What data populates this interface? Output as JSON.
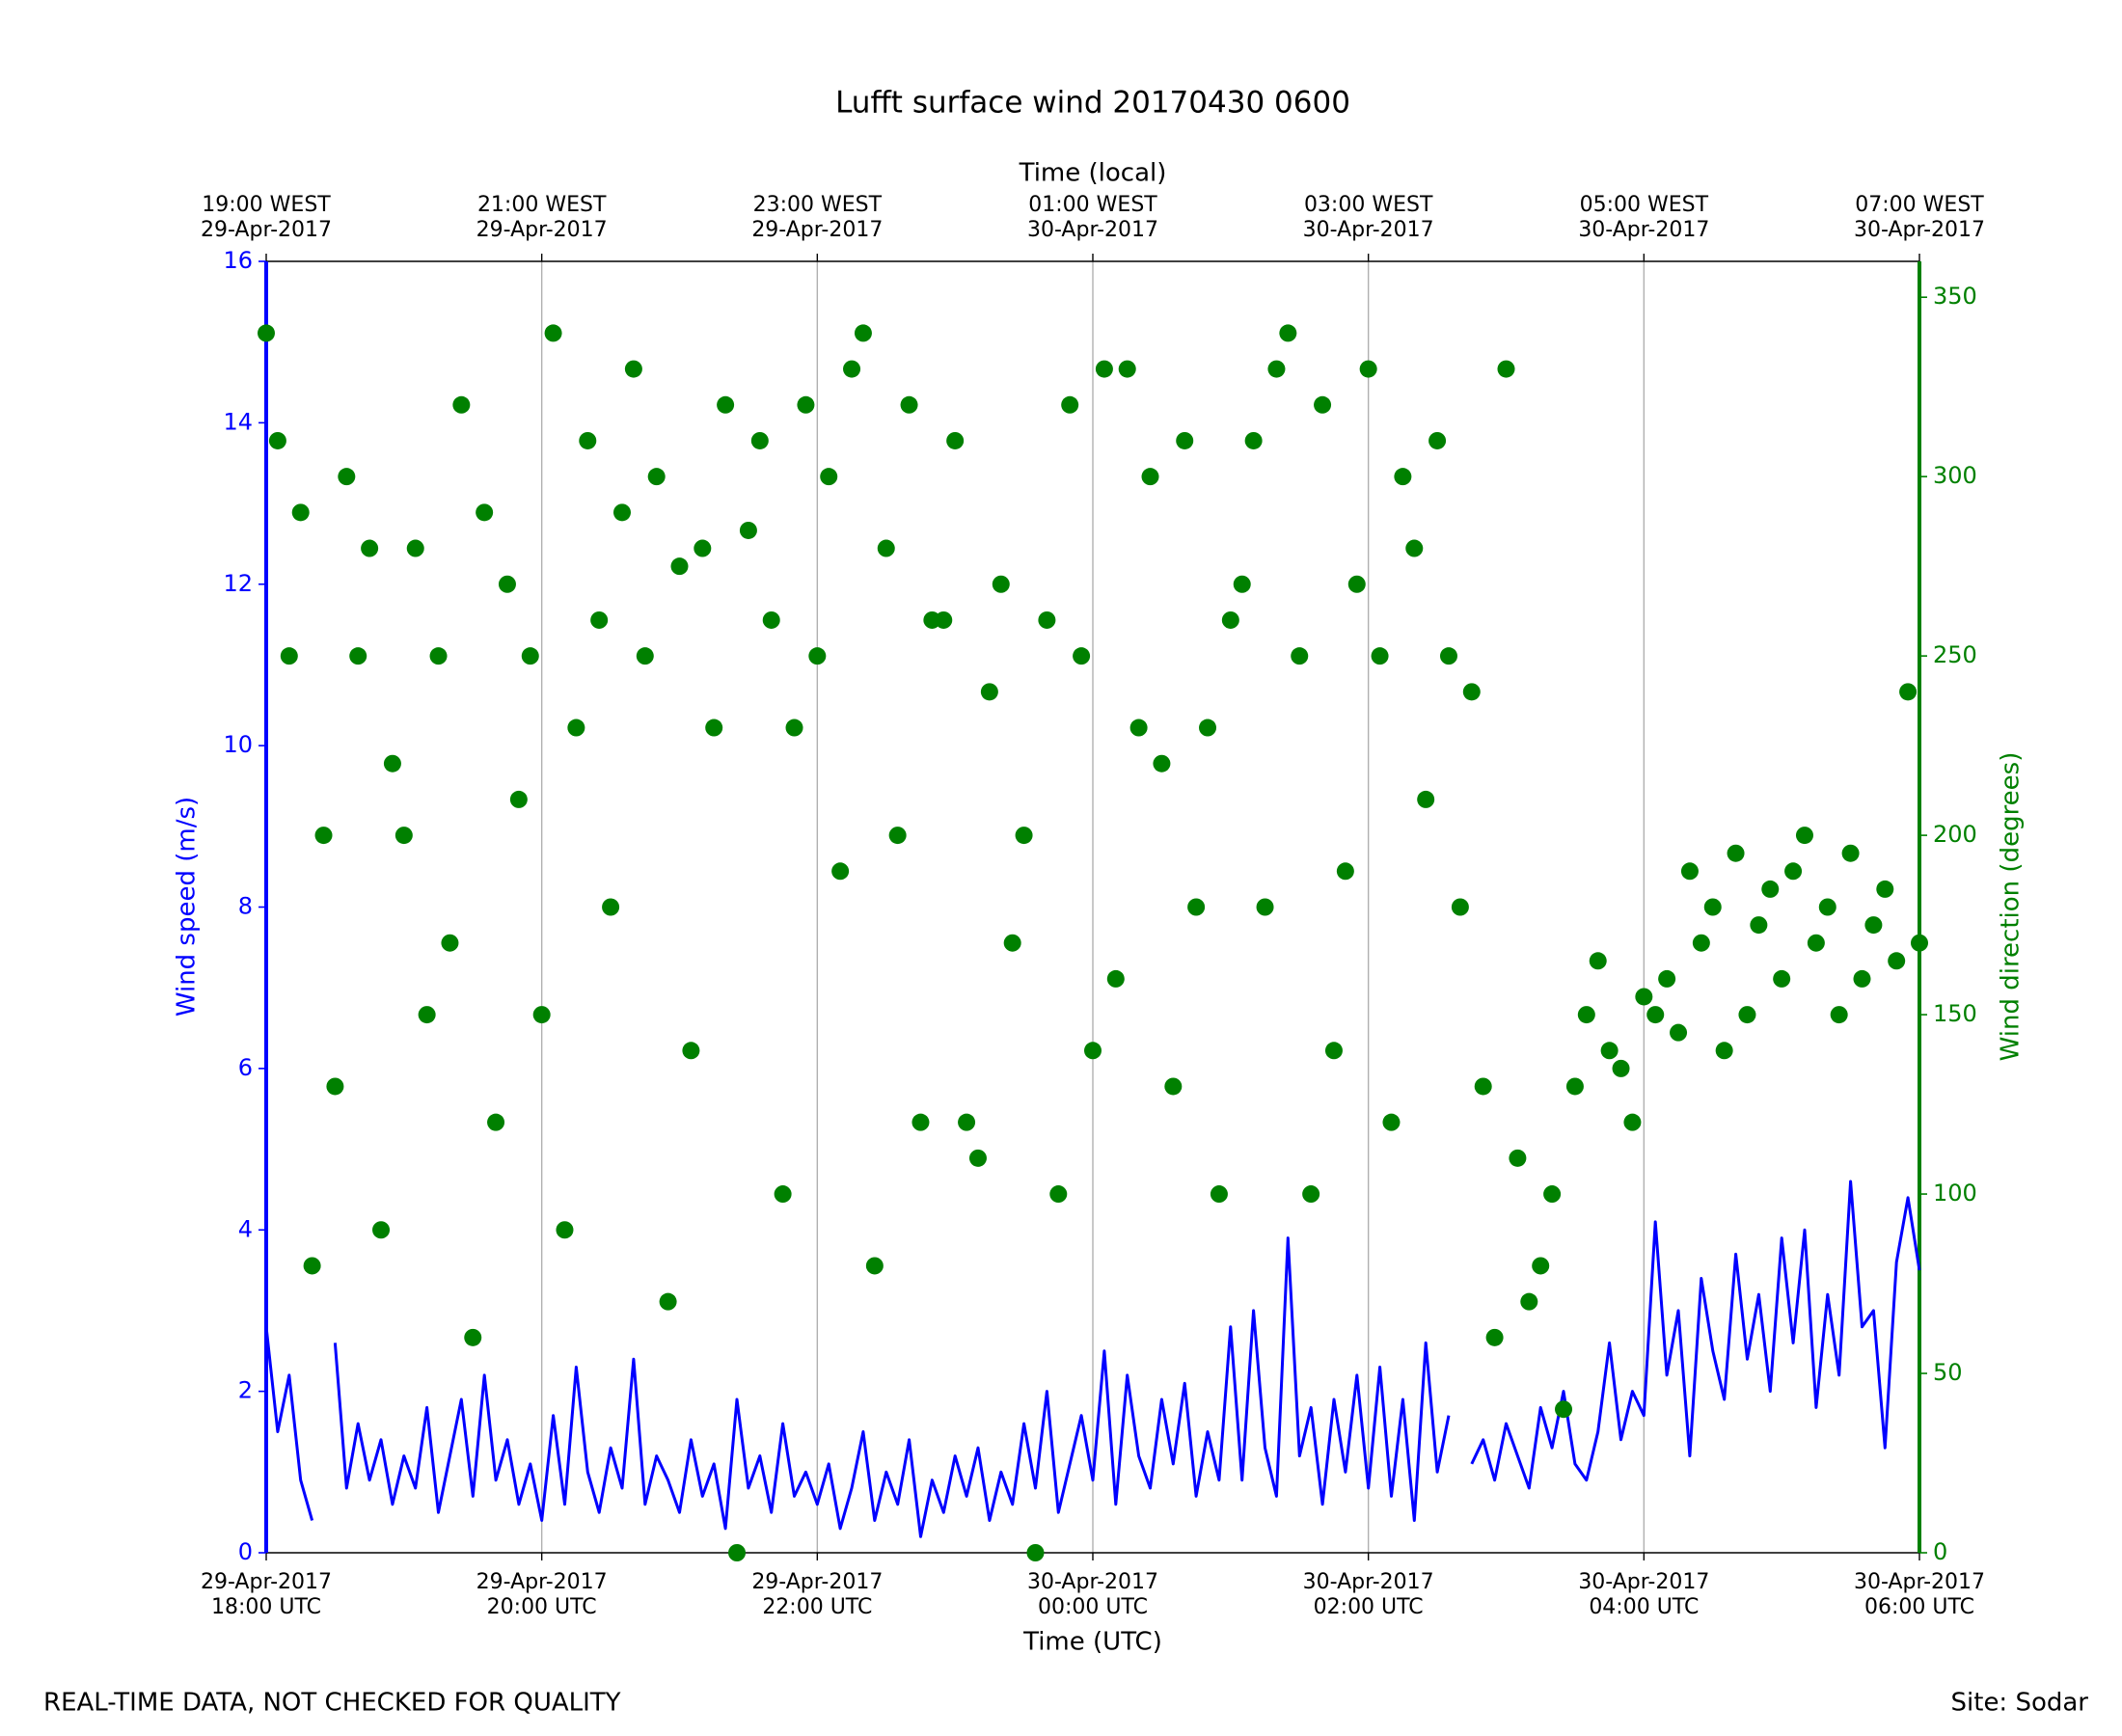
{
  "chart_data": {
    "type": "line-scatter",
    "title": "Lufft surface wind 20170430 0600",
    "x_label": "Time (UTC)",
    "x2_label": "Time (local)",
    "y_label": "Wind speed (m/s)",
    "y2_label": "Wind direction (degrees)",
    "footer_left": "REAL-TIME DATA, NOT CHECKED FOR QUALITY",
    "footer_right": "Site: Sodar",
    "xlim": [
      "2017-04-29T18:00",
      "2017-04-30T06:00"
    ],
    "xticks": [
      {
        "value": "2017-04-29T18:00",
        "label": [
          "29-Apr-2017",
          "18:00 UTC"
        ]
      },
      {
        "value": "2017-04-29T20:00",
        "label": [
          "29-Apr-2017",
          "20:00 UTC"
        ]
      },
      {
        "value": "2017-04-29T22:00",
        "label": [
          "29-Apr-2017",
          "22:00 UTC"
        ]
      },
      {
        "value": "2017-04-30T00:00",
        "label": [
          "30-Apr-2017",
          "00:00 UTC"
        ]
      },
      {
        "value": "2017-04-30T02:00",
        "label": [
          "30-Apr-2017",
          "02:00 UTC"
        ]
      },
      {
        "value": "2017-04-30T04:00",
        "label": [
          "30-Apr-2017",
          "04:00 UTC"
        ]
      },
      {
        "value": "2017-04-30T06:00",
        "label": [
          "30-Apr-2017",
          "06:00 UTC"
        ]
      }
    ],
    "x2ticks": [
      {
        "value": "2017-04-29T18:00",
        "label": [
          "19:00 WEST",
          "29-Apr-2017"
        ]
      },
      {
        "value": "2017-04-29T20:00",
        "label": [
          "21:00 WEST",
          "29-Apr-2017"
        ]
      },
      {
        "value": "2017-04-29T22:00",
        "label": [
          "23:00 WEST",
          "29-Apr-2017"
        ]
      },
      {
        "value": "2017-04-30T00:00",
        "label": [
          "01:00 WEST",
          "30-Apr-2017"
        ]
      },
      {
        "value": "2017-04-30T02:00",
        "label": [
          "03:00 WEST",
          "30-Apr-2017"
        ]
      },
      {
        "value": "2017-04-30T04:00",
        "label": [
          "05:00 WEST",
          "30-Apr-2017"
        ]
      },
      {
        "value": "2017-04-30T06:00",
        "label": [
          "07:00 WEST",
          "30-Apr-2017"
        ]
      }
    ],
    "ylim": [
      0,
      16
    ],
    "yticks": [
      0,
      2,
      4,
      6,
      8,
      10,
      12,
      14,
      16
    ],
    "y2lim": [
      0,
      360
    ],
    "y2ticks": [
      0,
      50,
      100,
      150,
      200,
      250,
      300,
      350
    ],
    "grid": true,
    "x": [
      "2017-04-29T18:00",
      "2017-04-29T18:05",
      "2017-04-29T18:10",
      "2017-04-29T18:15",
      "2017-04-29T18:20",
      "2017-04-29T18:25",
      "2017-04-29T18:30",
      "2017-04-29T18:35",
      "2017-04-29T18:40",
      "2017-04-29T18:45",
      "2017-04-29T18:50",
      "2017-04-29T18:55",
      "2017-04-29T19:00",
      "2017-04-29T19:05",
      "2017-04-29T19:10",
      "2017-04-29T19:15",
      "2017-04-29T19:20",
      "2017-04-29T19:25",
      "2017-04-29T19:30",
      "2017-04-29T19:35",
      "2017-04-29T19:40",
      "2017-04-29T19:45",
      "2017-04-29T19:50",
      "2017-04-29T19:55",
      "2017-04-29T20:00",
      "2017-04-29T20:05",
      "2017-04-29T20:10",
      "2017-04-29T20:15",
      "2017-04-29T20:20",
      "2017-04-29T20:25",
      "2017-04-29T20:30",
      "2017-04-29T20:35",
      "2017-04-29T20:40",
      "2017-04-29T20:45",
      "2017-04-29T20:50",
      "2017-04-29T20:55",
      "2017-04-29T21:00",
      "2017-04-29T21:05",
      "2017-04-29T21:10",
      "2017-04-29T21:15",
      "2017-04-29T21:20",
      "2017-04-29T21:25",
      "2017-04-29T21:30",
      "2017-04-29T21:35",
      "2017-04-29T21:40",
      "2017-04-29T21:45",
      "2017-04-29T21:50",
      "2017-04-29T21:55",
      "2017-04-29T22:00",
      "2017-04-29T22:05",
      "2017-04-29T22:10",
      "2017-04-29T22:15",
      "2017-04-29T22:20",
      "2017-04-29T22:25",
      "2017-04-29T22:30",
      "2017-04-29T22:35",
      "2017-04-29T22:40",
      "2017-04-29T22:45",
      "2017-04-29T22:50",
      "2017-04-29T22:55",
      "2017-04-29T23:00",
      "2017-04-29T23:05",
      "2017-04-29T23:10",
      "2017-04-29T23:15",
      "2017-04-29T23:20",
      "2017-04-29T23:25",
      "2017-04-29T23:30",
      "2017-04-29T23:35",
      "2017-04-29T23:40",
      "2017-04-29T23:45",
      "2017-04-29T23:50",
      "2017-04-29T23:55",
      "2017-04-30T00:00",
      "2017-04-30T00:05",
      "2017-04-30T00:10",
      "2017-04-30T00:15",
      "2017-04-30T00:20",
      "2017-04-30T00:25",
      "2017-04-30T00:30",
      "2017-04-30T00:35",
      "2017-04-30T00:40",
      "2017-04-30T00:45",
      "2017-04-30T00:50",
      "2017-04-30T00:55",
      "2017-04-30T01:00",
      "2017-04-30T01:05",
      "2017-04-30T01:10",
      "2017-04-30T01:15",
      "2017-04-30T01:20",
      "2017-04-30T01:25",
      "2017-04-30T01:30",
      "2017-04-30T01:35",
      "2017-04-30T01:40",
      "2017-04-30T01:45",
      "2017-04-30T01:50",
      "2017-04-30T01:55",
      "2017-04-30T02:00",
      "2017-04-30T02:05",
      "2017-04-30T02:10",
      "2017-04-30T02:15",
      "2017-04-30T02:20",
      "2017-04-30T02:25",
      "2017-04-30T02:30",
      "2017-04-30T02:35",
      "2017-04-30T02:40",
      "2017-04-30T02:45",
      "2017-04-30T02:50",
      "2017-04-30T02:55",
      "2017-04-30T03:00",
      "2017-04-30T03:05",
      "2017-04-30T03:10",
      "2017-04-30T03:15",
      "2017-04-30T03:20",
      "2017-04-30T03:25",
      "2017-04-30T03:30",
      "2017-04-30T03:35",
      "2017-04-30T03:40",
      "2017-04-30T03:45",
      "2017-04-30T03:50",
      "2017-04-30T03:55",
      "2017-04-30T04:00",
      "2017-04-30T04:05",
      "2017-04-30T04:10",
      "2017-04-30T04:15",
      "2017-04-30T04:20",
      "2017-04-30T04:25",
      "2017-04-30T04:30",
      "2017-04-30T04:35",
      "2017-04-30T04:40",
      "2017-04-30T04:45",
      "2017-04-30T04:50",
      "2017-04-30T04:55",
      "2017-04-30T05:00",
      "2017-04-30T05:05",
      "2017-04-30T05:10",
      "2017-04-30T05:15",
      "2017-04-30T05:20",
      "2017-04-30T05:25",
      "2017-04-30T05:30",
      "2017-04-30T05:35",
      "2017-04-30T05:40",
      "2017-04-30T05:45",
      "2017-04-30T05:50",
      "2017-04-30T05:55",
      "2017-04-30T06:00"
    ],
    "series": [
      {
        "name": "Wind speed",
        "color": "#0000ff",
        "kind": "line",
        "axis": "y",
        "values": [
          2.8,
          1.5,
          2.2,
          0.9,
          0.4,
          null,
          2.6,
          0.8,
          1.6,
          0.9,
          1.4,
          0.6,
          1.2,
          0.8,
          1.8,
          0.5,
          1.2,
          1.9,
          0.7,
          2.2,
          0.9,
          1.4,
          0.6,
          1.1,
          0.4,
          1.7,
          0.6,
          2.3,
          1.0,
          0.5,
          1.3,
          0.8,
          2.4,
          0.6,
          1.2,
          0.9,
          0.5,
          1.4,
          0.7,
          1.1,
          0.3,
          1.9,
          0.8,
          1.2,
          0.5,
          1.6,
          0.7,
          1.0,
          0.6,
          1.1,
          0.3,
          0.8,
          1.5,
          0.4,
          1.0,
          0.6,
          1.4,
          0.2,
          0.9,
          0.5,
          1.2,
          0.7,
          1.3,
          0.4,
          1.0,
          0.6,
          1.6,
          0.8,
          2.0,
          0.5,
          1.1,
          1.7,
          0.9,
          2.5,
          0.6,
          2.2,
          1.2,
          0.8,
          1.9,
          1.1,
          2.1,
          0.7,
          1.5,
          0.9,
          2.8,
          0.9,
          3.0,
          1.3,
          0.7,
          3.9,
          1.2,
          1.8,
          0.6,
          1.9,
          1.0,
          2.2,
          0.8,
          2.3,
          0.7,
          1.9,
          0.4,
          2.6,
          1.0,
          1.7,
          null,
          1.1,
          1.4,
          0.9,
          1.6,
          1.2,
          0.8,
          1.8,
          1.3,
          2.0,
          1.1,
          0.9,
          1.5,
          2.6,
          1.4,
          2.0,
          1.7,
          4.1,
          2.2,
          3.0,
          1.2,
          3.4,
          2.5,
          1.9,
          3.7,
          2.4,
          3.2,
          2.0,
          3.9,
          2.6,
          4.0,
          1.8,
          3.2,
          2.2,
          4.6,
          2.8,
          3.0,
          1.3,
          3.6,
          4.4,
          3.5
        ]
      },
      {
        "name": "Wind direction",
        "color": "#008000",
        "kind": "scatter",
        "axis": "y2",
        "values": [
          340,
          310,
          250,
          290,
          80,
          200,
          130,
          300,
          250,
          280,
          90,
          220,
          200,
          280,
          150,
          250,
          170,
          320,
          60,
          290,
          120,
          270,
          210,
          250,
          150,
          340,
          90,
          230,
          310,
          260,
          180,
          290,
          330,
          250,
          300,
          70,
          275,
          140,
          280,
          230,
          320,
          0,
          285,
          310,
          260,
          100,
          230,
          320,
          250,
          300,
          190,
          330,
          340,
          80,
          280,
          200,
          320,
          120,
          260,
          260,
          310,
          120,
          110,
          240,
          270,
          170,
          200,
          0,
          260,
          100,
          320,
          250,
          140,
          330,
          160,
          330,
          230,
          300,
          220,
          130,
          310,
          180,
          230,
          100,
          260,
          270,
          310,
          180,
          330,
          340,
          250,
          100,
          320,
          140,
          190,
          270,
          330,
          250,
          120,
          300,
          280,
          210,
          310,
          250,
          180,
          240,
          130,
          60,
          330,
          110,
          70,
          80,
          100,
          40,
          130,
          150,
          165,
          140,
          135,
          120,
          155,
          150,
          160,
          145,
          190,
          170,
          180,
          140,
          195,
          150,
          175,
          185,
          160,
          190,
          200,
          170,
          180,
          150,
          195,
          160,
          175,
          185,
          165,
          240,
          170
        ]
      }
    ]
  }
}
